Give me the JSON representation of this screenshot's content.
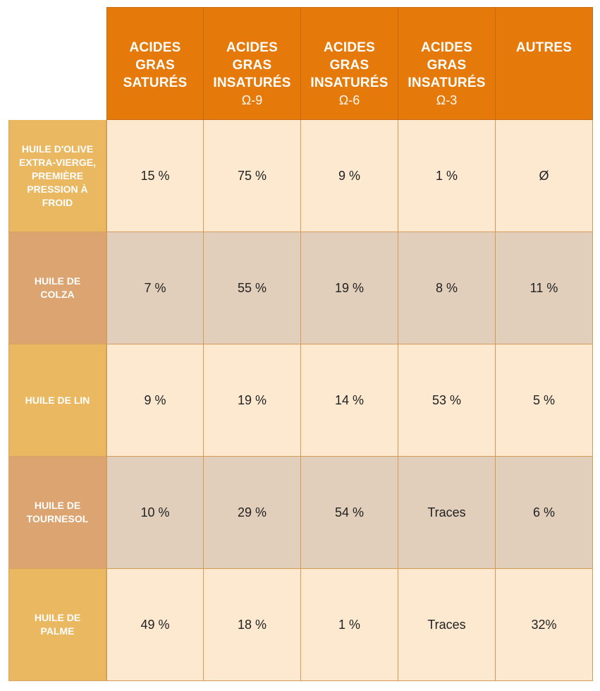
{
  "table": {
    "columns": [
      {
        "lines": [
          "ACIDES",
          "GRAS",
          "SATURÉS"
        ],
        "sub": ""
      },
      {
        "lines": [
          "ACIDES",
          "GRAS",
          "INSATURÉS"
        ],
        "sub": "Ω-9"
      },
      {
        "lines": [
          "ACIDES",
          "GRAS",
          "INSATURÉS"
        ],
        "sub": "Ω-6"
      },
      {
        "lines": [
          "ACIDES",
          "GRAS",
          "INSATURÉS"
        ],
        "sub": "Ω-3"
      },
      {
        "lines": [
          "AUTRES"
        ],
        "sub": ""
      }
    ],
    "rows": [
      {
        "label_lines": [
          "HUILE D'OLIVE",
          "EXTRA-VIERGE,",
          "PREMIÈRE",
          "PRESSION À",
          "FROID"
        ],
        "values": [
          "15 %",
          "75 %",
          "9 %",
          "1 %",
          "Ø"
        ]
      },
      {
        "label_lines": [
          "HUILE DE",
          "COLZA"
        ],
        "values": [
          "7 %",
          "55 %",
          "19 %",
          "8 %",
          "11 %"
        ]
      },
      {
        "label_lines": [
          "HUILE DE LIN"
        ],
        "values": [
          "9 %",
          "19 %",
          "14 %",
          "53 %",
          "5 %"
        ]
      },
      {
        "label_lines": [
          "HUILE DE",
          "TOURNESOL"
        ],
        "values": [
          "10 %",
          "29 %",
          "54 %",
          "Traces",
          "6 %"
        ]
      },
      {
        "label_lines": [
          "HUILE DE",
          "PALME"
        ],
        "values": [
          "49 %",
          "18 %",
          "1 %",
          "Traces",
          "32%"
        ]
      }
    ]
  },
  "colors": {
    "header_orange": "#e57a0a",
    "row_light": "#fce9d0",
    "row_dark": "#e2cfbb",
    "rowhead_light": "#e9b861",
    "rowhead_dark": "#dba470"
  }
}
